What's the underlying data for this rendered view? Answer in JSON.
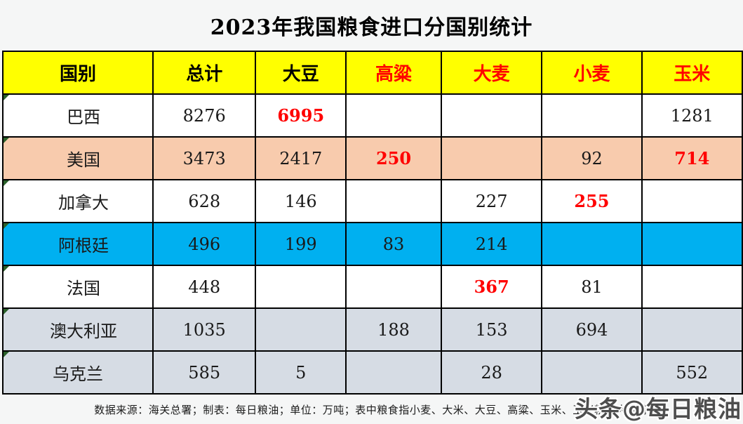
{
  "title": "2023年我国粮食进口分国别统计",
  "footer": "数据来源：海关总署；制表：每日粮油；单位：万吨；表中粮食指小麦、大米、大豆、高粱、玉米、玉米粉、大麦等",
  "watermark": "头条@每日粮油",
  "colors": {
    "header_bg": "#FFFF00",
    "header_text_black": "#000000",
    "header_text_red": "#FF0000",
    "value_red": "#FF0000",
    "value_black": "#1a1a1a",
    "row_white": "#FFFFFF",
    "row_peach": "#F8CBAD",
    "row_blue": "#00B0F0",
    "row_gray": "#D6DCE4",
    "corner_marker_green": "#2a602a"
  },
  "table": {
    "headers": [
      {
        "label": "国别",
        "red": false
      },
      {
        "label": "总计",
        "red": false
      },
      {
        "label": "大豆",
        "red": false
      },
      {
        "label": "高粱",
        "red": true
      },
      {
        "label": "大麦",
        "red": true
      },
      {
        "label": "小麦",
        "red": true
      },
      {
        "label": "玉米",
        "red": true
      }
    ],
    "rows": [
      {
        "country": "巴西",
        "bg": "white",
        "centered": false,
        "cells": [
          {
            "t": "8276",
            "red": false
          },
          {
            "t": "6995",
            "red": true
          },
          {
            "t": "",
            "red": false
          },
          {
            "t": "",
            "red": false
          },
          {
            "t": "",
            "red": false
          },
          {
            "t": "1281",
            "red": false
          }
        ]
      },
      {
        "country": "美国",
        "bg": "peach",
        "centered": false,
        "cells": [
          {
            "t": "3473",
            "red": false
          },
          {
            "t": "2417",
            "red": false
          },
          {
            "t": "250",
            "red": true
          },
          {
            "t": "",
            "red": false
          },
          {
            "t": "92",
            "red": false
          },
          {
            "t": "714",
            "red": true
          }
        ]
      },
      {
        "country": "加拿大",
        "bg": "white",
        "centered": false,
        "cells": [
          {
            "t": "628",
            "red": false
          },
          {
            "t": "146",
            "red": false
          },
          {
            "t": "",
            "red": false
          },
          {
            "t": "227",
            "red": false
          },
          {
            "t": "255",
            "red": true
          },
          {
            "t": "",
            "red": false
          }
        ]
      },
      {
        "country": "阿根廷",
        "bg": "blue",
        "centered": false,
        "cells": [
          {
            "t": "496",
            "red": false
          },
          {
            "t": "199",
            "red": false
          },
          {
            "t": "83",
            "red": false
          },
          {
            "t": "214",
            "red": false
          },
          {
            "t": "",
            "red": false
          },
          {
            "t": "",
            "red": false
          }
        ]
      },
      {
        "country": "法国",
        "bg": "white",
        "centered": false,
        "cells": [
          {
            "t": "448",
            "red": false
          },
          {
            "t": "",
            "red": false
          },
          {
            "t": "",
            "red": false
          },
          {
            "t": "367",
            "red": true
          },
          {
            "t": "81",
            "red": false
          },
          {
            "t": "",
            "red": false
          }
        ]
      },
      {
        "country": "澳大利亚",
        "bg": "gray",
        "centered": false,
        "cells": [
          {
            "t": "1035",
            "red": false
          },
          {
            "t": "",
            "red": false
          },
          {
            "t": "188",
            "red": false
          },
          {
            "t": "153",
            "red": false
          },
          {
            "t": "694",
            "red": false
          },
          {
            "t": "",
            "red": false
          }
        ]
      },
      {
        "country": "乌克兰",
        "bg": "gray",
        "centered": true,
        "cells": [
          {
            "t": "585",
            "red": false
          },
          {
            "t": "5",
            "red": false
          },
          {
            "t": "",
            "red": false
          },
          {
            "t": "28",
            "red": false
          },
          {
            "t": "",
            "red": false
          },
          {
            "t": "552",
            "red": false
          }
        ]
      }
    ]
  },
  "chart_data": {
    "type": "table",
    "title": "2023年我国粮食进口分国别统计",
    "unit": "万吨",
    "columns": [
      "国别",
      "总计",
      "大豆",
      "高粱",
      "大麦",
      "小麦",
      "玉米"
    ],
    "rows": [
      [
        "巴西",
        8276,
        6995,
        null,
        null,
        null,
        1281
      ],
      [
        "美国",
        3473,
        2417,
        250,
        null,
        92,
        714
      ],
      [
        "加拿大",
        628,
        146,
        null,
        227,
        255,
        null
      ],
      [
        "阿根廷",
        496,
        199,
        83,
        214,
        null,
        null
      ],
      [
        "法国",
        448,
        null,
        null,
        367,
        81,
        null
      ],
      [
        "澳大利亚",
        1035,
        null,
        188,
        153,
        694,
        null
      ],
      [
        "乌克兰",
        585,
        5,
        null,
        28,
        null,
        552
      ]
    ],
    "source_note": "数据来源：海关总署；制表：每日粮油；单位：万吨"
  }
}
